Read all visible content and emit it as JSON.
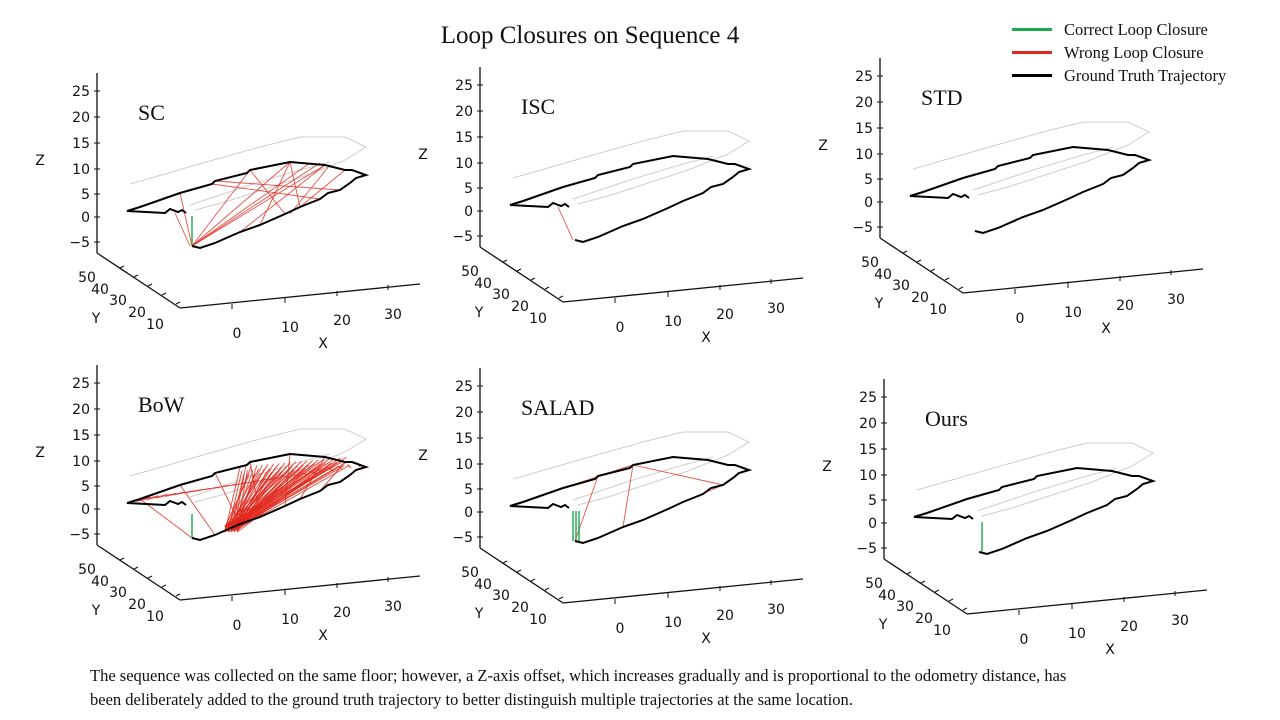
{
  "chart_data": {
    "type": "line3d",
    "title": "Loop Closures on Sequence 4",
    "legend": {
      "placement": "top-right",
      "entries": [
        {
          "label": "Correct Loop Closure",
          "color": "#1aa84a"
        },
        {
          "label": "Wrong Loop Closure",
          "color": "#e0281c"
        },
        {
          "label": "Ground Truth Trajectory",
          "color": "#000000"
        }
      ]
    },
    "axes": {
      "xlabel": "X",
      "ylabel": "Y",
      "zlabel": "Z",
      "xticks": [
        "0",
        "10",
        "20",
        "30"
      ],
      "yticks": [
        "50",
        "40",
        "30",
        "20",
        "10"
      ],
      "zticks": [
        "25",
        "20",
        "15",
        "10",
        "5",
        "0",
        "−5"
      ],
      "xlim": [
        -10,
        35
      ],
      "ylim": [
        5,
        55
      ],
      "zlim": [
        -7,
        27
      ]
    },
    "panels": [
      {
        "name": "SC",
        "wrong_closures": "some",
        "correct_closures": "few"
      },
      {
        "name": "ISC",
        "wrong_closures": "one",
        "correct_closures": "none"
      },
      {
        "name": "STD",
        "wrong_closures": "none",
        "correct_closures": "none"
      },
      {
        "name": "BoW",
        "wrong_closures": "many",
        "correct_closures": "few"
      },
      {
        "name": "SALAD",
        "wrong_closures": "some",
        "correct_closures": "several"
      },
      {
        "name": "Ours",
        "wrong_closures": "none",
        "correct_closures": "one"
      }
    ]
  },
  "caption": [
    "The sequence was collected on the same floor; however, a Z-axis offset, which increases gradually and is proportional to the odometry distance, has",
    "been deliberately added to the ground truth trajectory to better distinguish multiple trajectories at the same location."
  ]
}
